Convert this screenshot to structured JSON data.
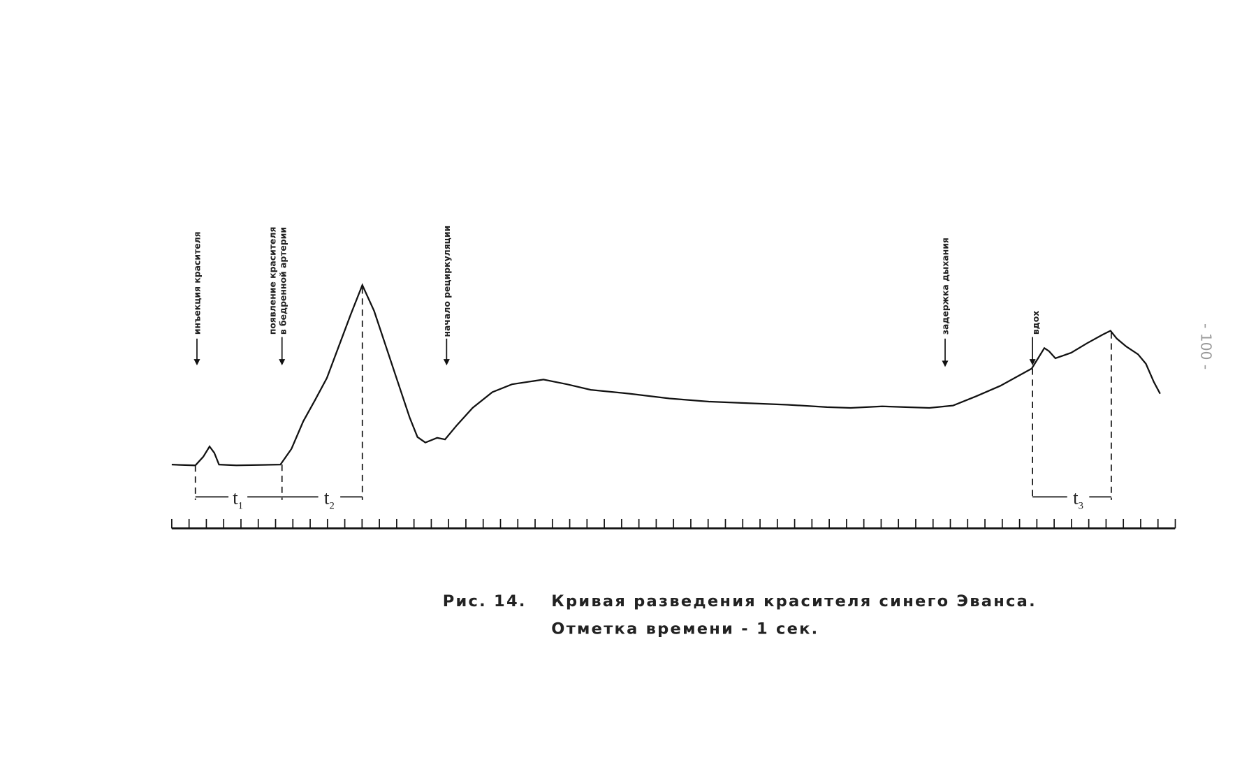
{
  "annotations": {
    "injection": "инъекция красителя",
    "appearance": [
      "появление красителя",
      "в бедренной артерии"
    ],
    "recirculation": "начало рециркуляции",
    "breath_hold": "задержка дыхания",
    "inhale": "вдох"
  },
  "intervals": [
    {
      "base": "t",
      "sub": "1"
    },
    {
      "base": "t",
      "sub": "2"
    },
    {
      "base": "t",
      "sub": "3"
    }
  ],
  "caption": {
    "label": "Рис. 14.",
    "lines": [
      "Кривая разведения красителя синего Эванса.",
      "Отметка времени - 1 сек."
    ]
  },
  "page_number": "- 100 -"
}
